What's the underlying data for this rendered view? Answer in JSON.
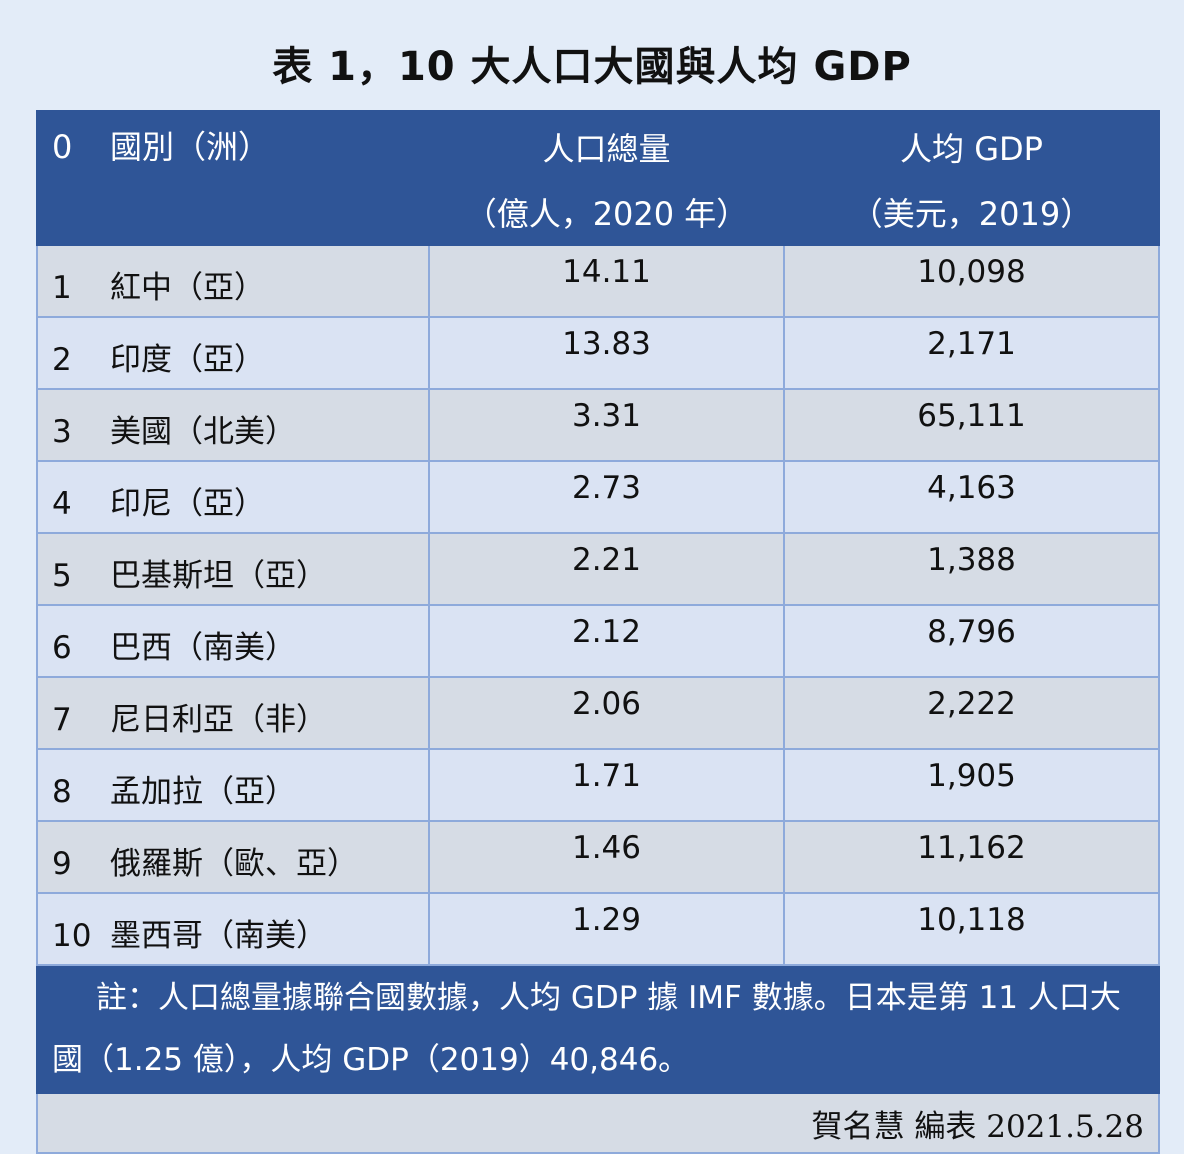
{
  "title": "表 1，10 大人口大國與人均 GDP",
  "header": {
    "index": "0",
    "country": "國別（洲）",
    "population_line1": "人口總量",
    "population_line2": "（億人，2020 年）",
    "gdp_line1": "人均 GDP",
    "gdp_line2": "（美元，2019）"
  },
  "rows": [
    {
      "index": "1",
      "country": "紅中（亞）",
      "population": "14.11",
      "gdp": "10,098"
    },
    {
      "index": "2",
      "country": "印度（亞）",
      "population": "13.83",
      "gdp": "2,171"
    },
    {
      "index": "3",
      "country": "美國（北美）",
      "population": "3.31",
      "gdp": "65,111"
    },
    {
      "index": "4",
      "country": "印尼（亞）",
      "population": "2.73",
      "gdp": "4,163"
    },
    {
      "index": "5",
      "country": "巴基斯坦（亞）",
      "population": "2.21",
      "gdp": "1,388"
    },
    {
      "index": "6",
      "country": "巴西（南美）",
      "population": "2.12",
      "gdp": "8,796"
    },
    {
      "index": "7",
      "country": "尼日利亞（非）",
      "population": "2.06",
      "gdp": "2,222"
    },
    {
      "index": "8",
      "country": "孟加拉（亞）",
      "population": "1.71",
      "gdp": "1,905"
    },
    {
      "index": "9",
      "country": "俄羅斯（歐、亞）",
      "population": "1.46",
      "gdp": "11,162"
    },
    {
      "index": "10",
      "country": "墨西哥（南美）",
      "population": "1.29",
      "gdp": "10,118"
    }
  ],
  "note": "註：人口總量據聯合國數據，人均 GDP 據 IMF 數據。日本是第 11 人口大國（1.25 億），人均 GDP（2019）40,846。",
  "signature": "賀名慧 編表 2021.5.28"
}
